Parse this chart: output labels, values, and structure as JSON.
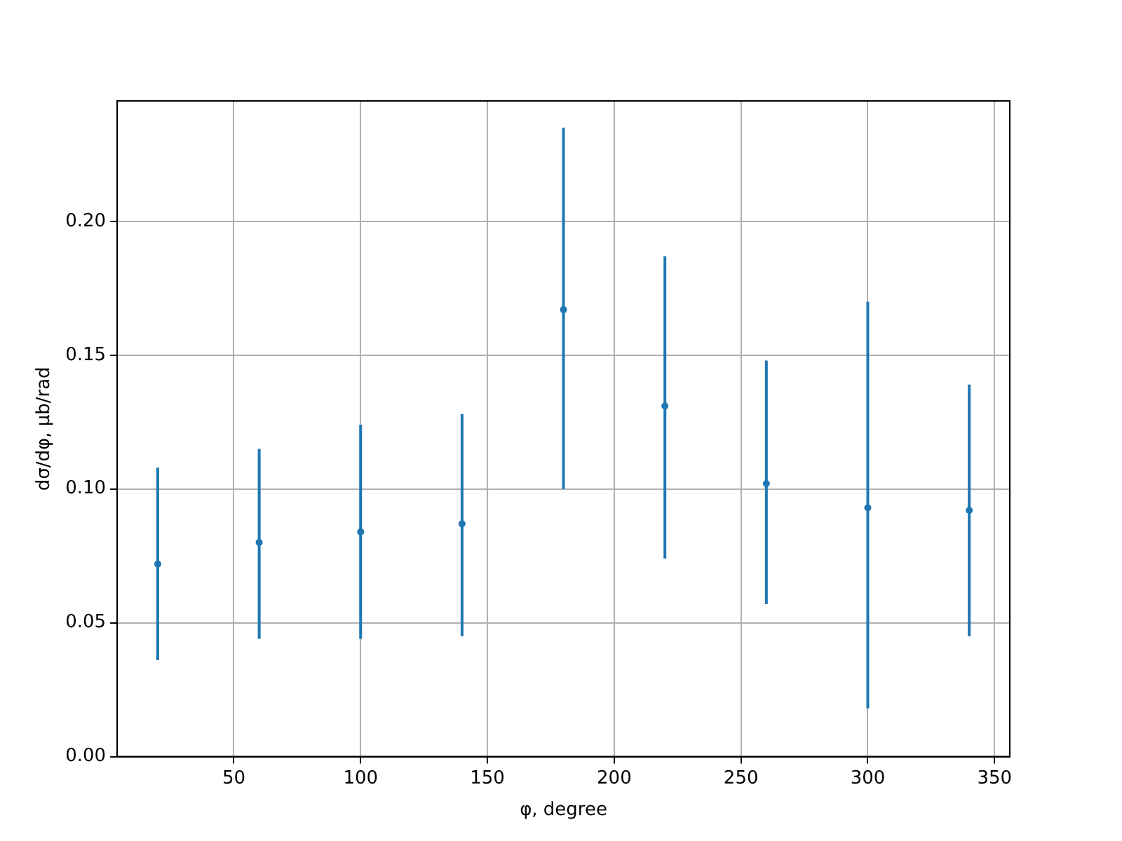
{
  "chart_data": {
    "type": "scatter",
    "xlabel": "φ, degree",
    "ylabel": "dσ/dφ, μb/rad",
    "x": [
      20,
      60,
      100,
      140,
      180,
      220,
      260,
      300,
      340
    ],
    "series": [
      {
        "color": "#1f77b4",
        "values": [
          0.072,
          0.08,
          0.084,
          0.087,
          0.167,
          0.131,
          0.102,
          0.093,
          0.092
        ],
        "errors": [
          [
            0.036,
            0.108
          ],
          [
            0.044,
            0.115
          ],
          [
            0.044,
            0.124
          ],
          [
            0.045,
            0.128
          ],
          [
            0.1,
            0.235
          ],
          [
            0.074,
            0.187
          ],
          [
            0.057,
            0.148
          ],
          [
            0.018,
            0.17
          ],
          [
            0.045,
            0.139
          ]
        ]
      }
    ],
    "xlim": [
      4,
      356
    ],
    "ylim": [
      0,
      0.245
    ],
    "xticks": [
      50,
      100,
      150,
      200,
      250,
      300,
      350
    ],
    "yticks": [
      {
        "value": 0,
        "label": "0.00"
      },
      {
        "value": 0.05,
        "label": "0.05"
      },
      {
        "value": 0.1,
        "label": "0.10"
      },
      {
        "value": 0.15,
        "label": "0.15"
      },
      {
        "value": 0.2,
        "label": "0.20"
      }
    ],
    "grid": true,
    "marker": "circle",
    "legend": false
  }
}
